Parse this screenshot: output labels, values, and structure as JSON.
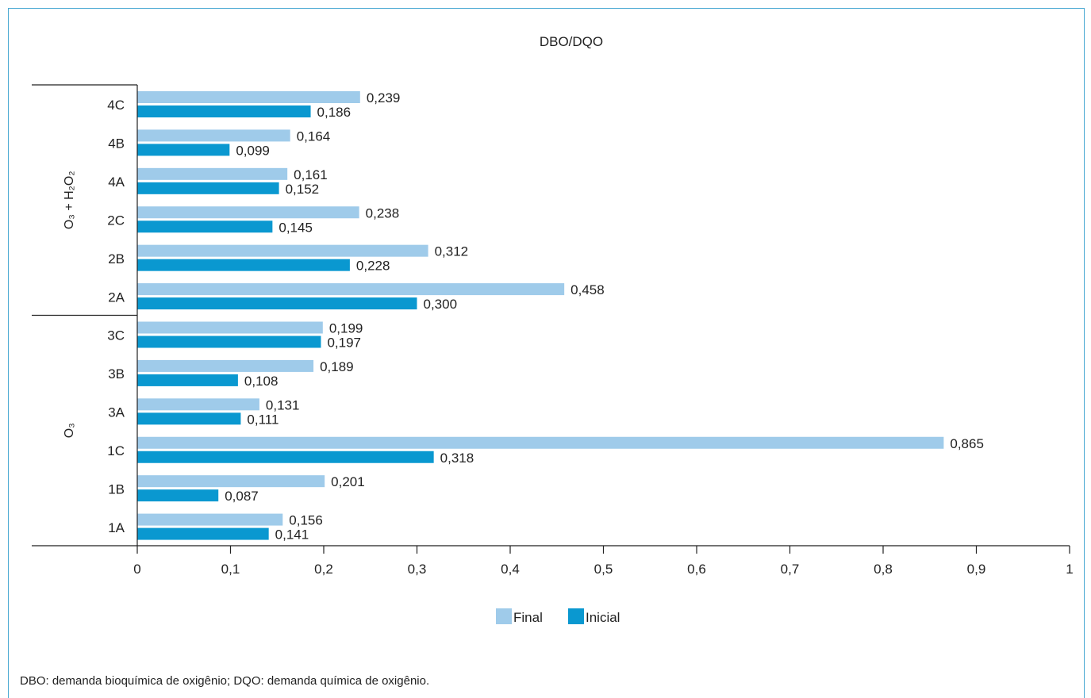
{
  "chart_data": {
    "type": "bar",
    "orientation": "horizontal",
    "title": "DBO/DQO",
    "categories": [
      "4C",
      "4B",
      "4A",
      "2C",
      "2B",
      "2A",
      "3C",
      "3B",
      "3A",
      "1C",
      "1B",
      "1A"
    ],
    "groups": [
      {
        "label": "O₃ + H₂O₂",
        "categories": [
          "4C",
          "4B",
          "4A",
          "2C",
          "2B",
          "2A"
        ]
      },
      {
        "label": "O₃",
        "categories": [
          "3C",
          "3B",
          "3A",
          "1C",
          "1B",
          "1A"
        ]
      }
    ],
    "series": [
      {
        "name": "Final",
        "color": "#9fcbea",
        "values": [
          0.239,
          0.164,
          0.161,
          0.238,
          0.312,
          0.458,
          0.199,
          0.189,
          0.131,
          0.865,
          0.201,
          0.156
        ],
        "labels": [
          "0,239",
          "0,164",
          "0,161",
          "0,238",
          "0,312",
          "0,458",
          "0,199",
          "0,189",
          "0,131",
          "0,865",
          "0,201",
          "0,156"
        ]
      },
      {
        "name": "Inicial",
        "color": "#0a98d0",
        "values": [
          0.186,
          0.099,
          0.152,
          0.145,
          0.228,
          0.3,
          0.197,
          0.108,
          0.111,
          0.318,
          0.087,
          0.141
        ],
        "labels": [
          "0,186",
          "0,099",
          "0,152",
          "0,145",
          "0,228",
          "0,300",
          "0,197",
          "0,108",
          "0,111",
          "0,318",
          "0,087",
          "0,141"
        ]
      }
    ],
    "xlim": [
      0,
      1
    ],
    "xticks": [
      0,
      0.1,
      0.2,
      0.3,
      0.4,
      0.5,
      0.6,
      0.7,
      0.8,
      0.9,
      1
    ],
    "xtick_labels": [
      "0",
      "0,1",
      "0,2",
      "0,3",
      "0,4",
      "0,5",
      "0,6",
      "0,7",
      "0,8",
      "0,9",
      "1"
    ],
    "grid": false,
    "legend": {
      "position": "bottom",
      "entries": [
        "Final",
        "Inicial"
      ]
    }
  },
  "footnote": "DBO: demanda bioquímica de oxigênio; DQO: demanda química de oxigênio.",
  "colors": {
    "frame": "#48a8d2",
    "final": "#9fcbea",
    "inicial": "#0a98d0"
  }
}
